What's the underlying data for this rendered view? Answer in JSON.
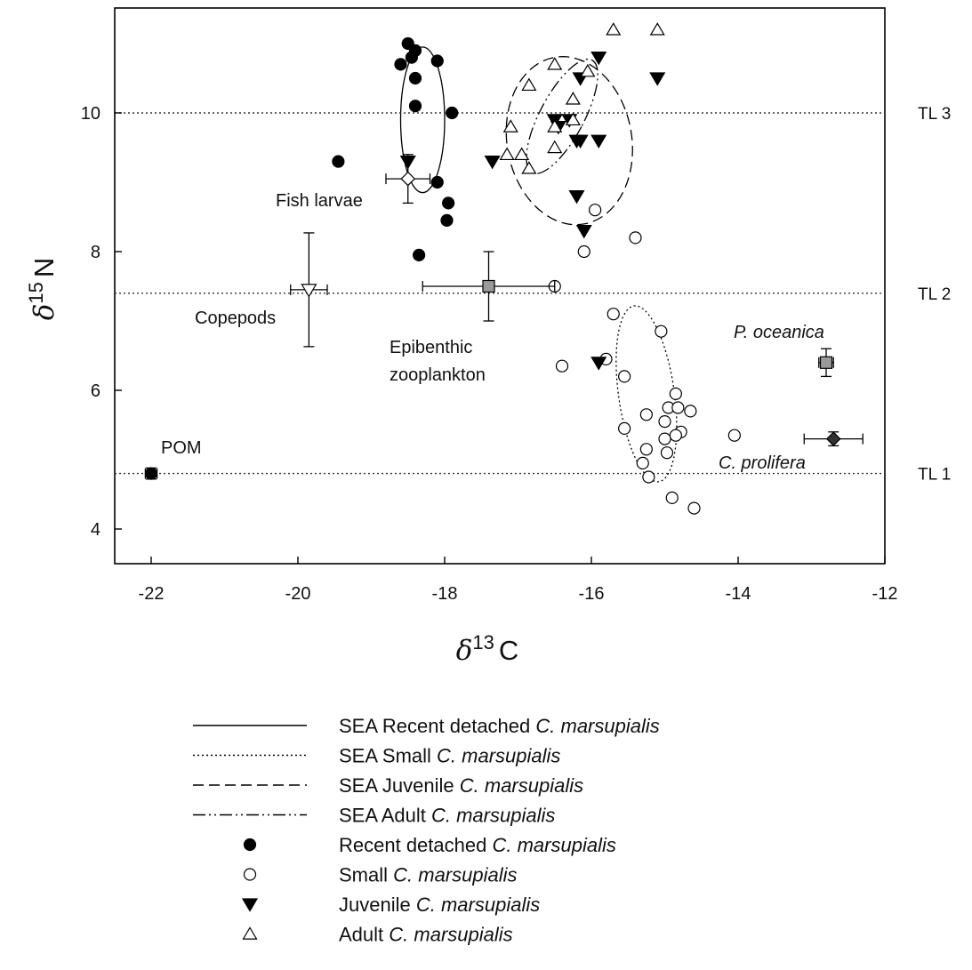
{
  "chart_data": {
    "type": "scatter",
    "xlabel": {
      "symbol": "δ",
      "superscript": "13",
      "base": "C"
    },
    "ylabel": {
      "symbol": "δ",
      "superscript": "15",
      "base": "N"
    },
    "xlim": [
      -22.5,
      -12
    ],
    "ylim": [
      3.5,
      11.3
    ],
    "xticks": [
      -22,
      -20,
      -18,
      -16,
      -14,
      -12
    ],
    "yticks": [
      4,
      6,
      8,
      10
    ],
    "grid": false,
    "legend_position": "bottom",
    "trophic_levels": [
      {
        "label": "TL 3",
        "y": 10.0
      },
      {
        "label": "TL 2",
        "y": 7.4
      },
      {
        "label": "TL 1",
        "y": 4.8
      }
    ],
    "series": [
      {
        "name": "Recent detached C. marsupialis",
        "marker": "filled-circle",
        "points": [
          [
            -18.6,
            10.7
          ],
          [
            -18.5,
            11.0
          ],
          [
            -18.4,
            10.9
          ],
          [
            -18.45,
            10.8
          ],
          [
            -18.4,
            10.5
          ],
          [
            -18.1,
            10.75
          ],
          [
            -18.4,
            10.1
          ],
          [
            -17.9,
            10.0
          ],
          [
            -19.45,
            9.3
          ],
          [
            -18.1,
            9.0
          ],
          [
            -17.95,
            8.7
          ],
          [
            -17.97,
            8.45
          ],
          [
            -18.35,
            7.95
          ]
        ]
      },
      {
        "name": "Small C. marsupialis",
        "marker": "open-circle",
        "points": [
          [
            -15.95,
            8.6
          ],
          [
            -16.1,
            8.0
          ],
          [
            -15.4,
            8.2
          ],
          [
            -16.5,
            7.5
          ],
          [
            -15.7,
            7.1
          ],
          [
            -15.05,
            6.85
          ],
          [
            -15.8,
            6.45
          ],
          [
            -16.4,
            6.35
          ],
          [
            -15.55,
            6.2
          ],
          [
            -14.85,
            5.95
          ],
          [
            -14.95,
            5.75
          ],
          [
            -14.82,
            5.75
          ],
          [
            -14.65,
            5.7
          ],
          [
            -15.25,
            5.65
          ],
          [
            -15.0,
            5.55
          ],
          [
            -15.55,
            5.45
          ],
          [
            -14.78,
            5.4
          ],
          [
            -14.85,
            5.35
          ],
          [
            -14.05,
            5.35
          ],
          [
            -15.0,
            5.3
          ],
          [
            -15.25,
            5.15
          ],
          [
            -14.97,
            5.1
          ],
          [
            -15.3,
            4.95
          ],
          [
            -15.22,
            4.75
          ],
          [
            -14.9,
            4.45
          ],
          [
            -14.6,
            4.3
          ]
        ]
      },
      {
        "name": "Juvenile C. marsupialis",
        "marker": "filled-triangle-down",
        "points": [
          [
            -15.9,
            10.8
          ],
          [
            -15.1,
            10.5
          ],
          [
            -16.15,
            10.5
          ],
          [
            -16.5,
            9.9
          ],
          [
            -16.45,
            9.8
          ],
          [
            -16.3,
            9.9
          ],
          [
            -16.2,
            9.6
          ],
          [
            -15.9,
            9.6
          ],
          [
            -16.15,
            9.6
          ],
          [
            -18.5,
            9.3
          ],
          [
            -17.35,
            9.3
          ],
          [
            -16.2,
            8.8
          ],
          [
            -16.1,
            8.3
          ],
          [
            -15.9,
            6.4
          ]
        ]
      },
      {
        "name": "Adult C. marsupialis",
        "marker": "open-triangle-up",
        "points": [
          [
            -15.7,
            11.2
          ],
          [
            -15.1,
            11.2
          ],
          [
            -16.5,
            10.7
          ],
          [
            -16.05,
            10.6
          ],
          [
            -16.85,
            10.4
          ],
          [
            -16.25,
            10.2
          ],
          [
            -16.25,
            9.9
          ],
          [
            -17.1,
            9.8
          ],
          [
            -16.5,
            9.8
          ],
          [
            -16.5,
            9.5
          ],
          [
            -17.15,
            9.4
          ],
          [
            -16.95,
            9.4
          ],
          [
            -16.85,
            9.2
          ]
        ]
      }
    ],
    "reference_points": [
      {
        "label": "Fish larvae",
        "x": -18.5,
        "y": 9.05,
        "xerr": 0.3,
        "yerr": 0.35,
        "marker": "open-diamond"
      },
      {
        "label": "Copepods",
        "x": -19.85,
        "y": 7.45,
        "xerr": 0.25,
        "yerr": 0.82,
        "marker": "open-triangle-down"
      },
      {
        "label": "Epibenthic zooplankton",
        "x": -17.4,
        "y": 7.5,
        "xerr": 0.9,
        "yerr": 0.5,
        "marker": "grey-square"
      },
      {
        "label": "POM",
        "x": -22.0,
        "y": 4.8,
        "xerr": 0.08,
        "yerr": 0.08,
        "marker": "filled-circle"
      },
      {
        "label": "P. oceanica",
        "x": -12.8,
        "y": 6.4,
        "xerr": 0.1,
        "yerr": 0.2,
        "marker": "grey-square"
      },
      {
        "label": "C. prolifera",
        "x": -12.7,
        "y": 5.3,
        "xerr": 0.4,
        "yerr": 0.1,
        "marker": "filled-diamond"
      }
    ],
    "ellipses": [
      {
        "name": "SEA Recent detached C. marsupialis",
        "style": "solid",
        "cx": -18.3,
        "cy": 9.9,
        "rx": 0.3,
        "ry": 1.05,
        "rotation": 0
      },
      {
        "name": "SEA Small C. marsupialis",
        "style": "dotted",
        "cx": -15.25,
        "cy": 5.95,
        "rx": 0.38,
        "ry": 1.28,
        "rotation": -8
      },
      {
        "name": "SEA Juvenile C. marsupialis",
        "style": "dashed",
        "cx": -16.3,
        "cy": 9.6,
        "rx": 0.85,
        "ry": 1.22,
        "rotation": -10
      },
      {
        "name": "SEA Adult C. marsupialis",
        "style": "dashdot",
        "cx": -16.4,
        "cy": 9.95,
        "rx": 0.3,
        "ry": 0.92,
        "rotation": 28
      }
    ],
    "legend": [
      {
        "style": "solid",
        "prefix": "SEA Recent detached ",
        "species": "C. marsupialis"
      },
      {
        "style": "dotted",
        "prefix": "SEA Small ",
        "species": "C. marsupialis"
      },
      {
        "style": "dashed",
        "prefix": "SEA Juvenile ",
        "species": "C. marsupialis"
      },
      {
        "style": "dashdot",
        "prefix": "SEA Adult ",
        "species": "C. marsupialis"
      },
      {
        "style": "filled-circle",
        "prefix": "Recent detached ",
        "species": "C. marsupialis"
      },
      {
        "style": "open-circle",
        "prefix": "Small ",
        "species": "C. marsupialis"
      },
      {
        "style": "filled-triangle-down",
        "prefix": "Juvenile ",
        "species": "C. marsupialis"
      },
      {
        "style": "open-triangle-up",
        "prefix": "Adult ",
        "species": "C. marsupialis"
      }
    ]
  }
}
